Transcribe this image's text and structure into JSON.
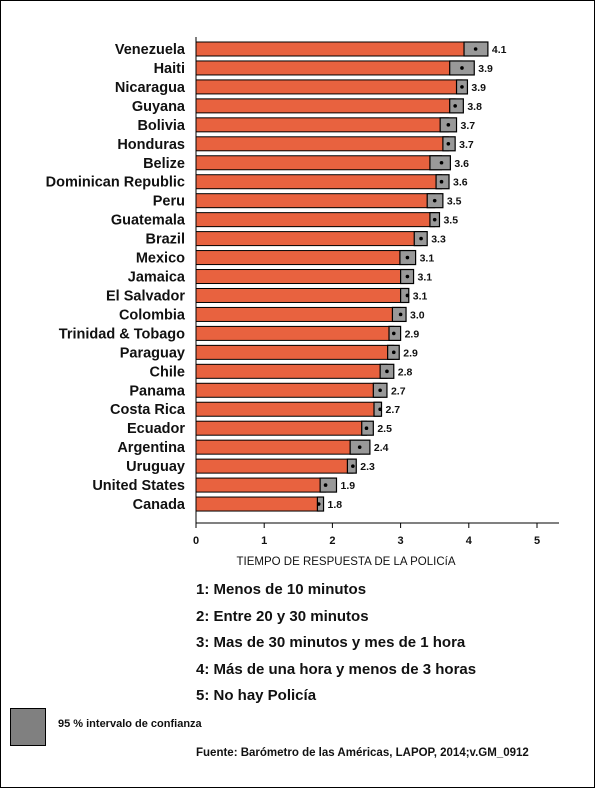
{
  "chart_data": {
    "type": "bar",
    "orientation": "horizontal",
    "categories": [
      "Venezuela",
      "Haiti",
      "Nicaragua",
      "Guyana",
      "Bolivia",
      "Honduras",
      "Belize",
      "Dominican Republic",
      "Peru",
      "Guatemala",
      "Brazil",
      "Mexico",
      "Jamaica",
      "El Salvador",
      "Colombia",
      "Trinidad & Tobago",
      "Paraguay",
      "Chile",
      "Panama",
      "Costa Rica",
      "Ecuador",
      "Argentina",
      "Uruguay",
      "United States",
      "Canada"
    ],
    "values": [
      4.1,
      3.9,
      3.9,
      3.8,
      3.7,
      3.7,
      3.6,
      3.6,
      3.5,
      3.5,
      3.3,
      3.1,
      3.1,
      3.1,
      3.0,
      2.9,
      2.9,
      2.8,
      2.7,
      2.7,
      2.5,
      2.4,
      2.3,
      1.9,
      1.8
    ],
    "value_labels": [
      "4.1",
      "3.9",
      "3.9",
      "3.8",
      "3.7",
      "3.7",
      "3.6",
      "3.6",
      "3.5",
      "3.5",
      "3.3",
      "3.1",
      "3.1",
      "3.1",
      "3.0",
      "2.9",
      "2.9",
      "2.8",
      "2.7",
      "2.7",
      "2.5",
      "2.4",
      "2.3",
      "1.9",
      "1.8"
    ],
    "ci_low": [
      3.93,
      3.72,
      3.82,
      3.72,
      3.58,
      3.62,
      3.43,
      3.52,
      3.39,
      3.43,
      3.2,
      2.99,
      3.0,
      3.0,
      2.88,
      2.83,
      2.81,
      2.7,
      2.6,
      2.61,
      2.43,
      2.26,
      2.22,
      1.82,
      1.78
    ],
    "ci_high": [
      4.28,
      4.08,
      3.98,
      3.92,
      3.82,
      3.8,
      3.73,
      3.71,
      3.62,
      3.57,
      3.39,
      3.22,
      3.19,
      3.12,
      3.08,
      3.0,
      2.98,
      2.9,
      2.8,
      2.72,
      2.6,
      2.55,
      2.35,
      2.06,
      1.87
    ],
    "xlabel": "TIEMPO DE RESPUESTA DE LA POLICíA",
    "xlim": [
      0,
      5
    ],
    "xticks": [
      "0",
      "1",
      "2",
      "3",
      "4",
      "5"
    ],
    "bar_color": "#e8623f",
    "ci_color": "#999999",
    "grid": false
  },
  "legend_items": [
    "1: Menos de 10 minutos",
    "2: Entre 20 y 30 minutos",
    "3: Mas de 30 minutos y mes de 1 hora",
    "4: Más de una hora y menos de 3 horas",
    "5: No hay Policía"
  ],
  "ci_legend_label": "95 % intervalo de confianza",
  "source": "Fuente: Barómetro de las Américas, LAPOP, 2014;v.GM_0912"
}
